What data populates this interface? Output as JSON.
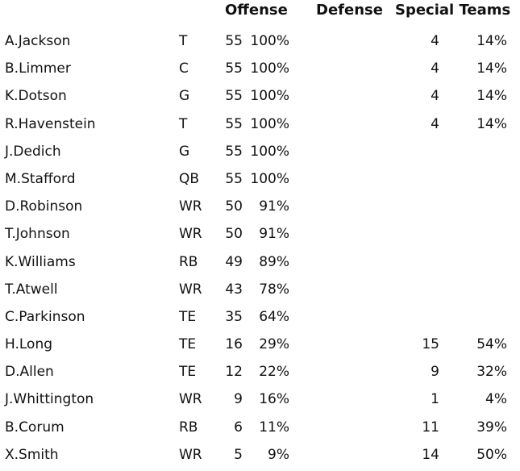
{
  "headers": {
    "offense": "Offense",
    "defense": "Defense",
    "special_teams": "Special Teams"
  },
  "players": [
    {
      "name": "A.Jackson",
      "pos": "T",
      "off_snaps": "55",
      "off_pct": "100%",
      "st_snaps": "4",
      "st_pct": "14%"
    },
    {
      "name": "B.Limmer",
      "pos": "C",
      "off_snaps": "55",
      "off_pct": "100%",
      "st_snaps": "4",
      "st_pct": "14%"
    },
    {
      "name": "K.Dotson",
      "pos": "G",
      "off_snaps": "55",
      "off_pct": "100%",
      "st_snaps": "4",
      "st_pct": "14%"
    },
    {
      "name": "R.Havenstein",
      "pos": "T",
      "off_snaps": "55",
      "off_pct": "100%",
      "st_snaps": "4",
      "st_pct": "14%"
    },
    {
      "name": "J.Dedich",
      "pos": "G",
      "off_snaps": "55",
      "off_pct": "100%",
      "st_snaps": "",
      "st_pct": ""
    },
    {
      "name": "M.Stafford",
      "pos": "QB",
      "off_snaps": "55",
      "off_pct": "100%",
      "st_snaps": "",
      "st_pct": ""
    },
    {
      "name": "D.Robinson",
      "pos": "WR",
      "off_snaps": "50",
      "off_pct": "91%",
      "st_snaps": "",
      "st_pct": ""
    },
    {
      "name": "T.Johnson",
      "pos": "WR",
      "off_snaps": "50",
      "off_pct": "91%",
      "st_snaps": "",
      "st_pct": ""
    },
    {
      "name": "K.Williams",
      "pos": "RB",
      "off_snaps": "49",
      "off_pct": "89%",
      "st_snaps": "",
      "st_pct": ""
    },
    {
      "name": "T.Atwell",
      "pos": "WR",
      "off_snaps": "43",
      "off_pct": "78%",
      "st_snaps": "",
      "st_pct": ""
    },
    {
      "name": "C.Parkinson",
      "pos": "TE",
      "off_snaps": "35",
      "off_pct": "64%",
      "st_snaps": "",
      "st_pct": ""
    },
    {
      "name": "H.Long",
      "pos": "TE",
      "off_snaps": "16",
      "off_pct": "29%",
      "st_snaps": "15",
      "st_pct": "54%"
    },
    {
      "name": "D.Allen",
      "pos": "TE",
      "off_snaps": "12",
      "off_pct": "22%",
      "st_snaps": "9",
      "st_pct": "32%"
    },
    {
      "name": "J.Whittington",
      "pos": "WR",
      "off_snaps": "9",
      "off_pct": "16%",
      "st_snaps": "1",
      "st_pct": "4%"
    },
    {
      "name": "B.Corum",
      "pos": "RB",
      "off_snaps": "6",
      "off_pct": "11%",
      "st_snaps": "11",
      "st_pct": "39%"
    },
    {
      "name": "X.Smith",
      "pos": "WR",
      "off_snaps": "5",
      "off_pct": "9%",
      "st_snaps": "14",
      "st_pct": "50%"
    }
  ]
}
